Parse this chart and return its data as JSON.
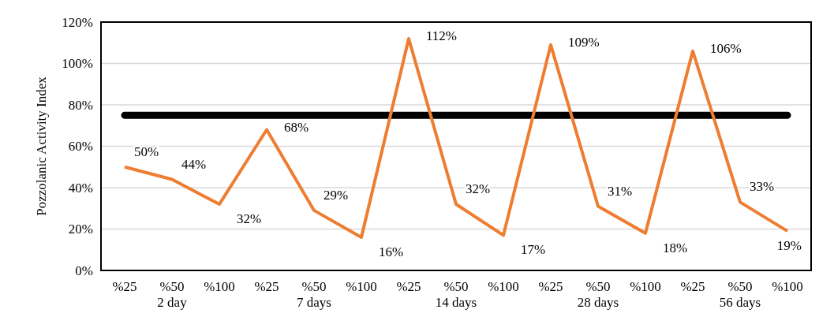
{
  "chart_data": {
    "type": "line",
    "ylabel": "Pozzolanic Activity Index",
    "categories": [
      "%25",
      "%50",
      "%100",
      "%25",
      "%50",
      "%100",
      "%25",
      "%50",
      "%100",
      "%25",
      "%50",
      "%100",
      "%25",
      "%50",
      "%100"
    ],
    "series": [
      {
        "color": "#ed7d31",
        "values": [
          50,
          44,
          32,
          68,
          29,
          16,
          112,
          32,
          17,
          109,
          31,
          18,
          106,
          33,
          19
        ],
        "value_labels": [
          "50%",
          "44%",
          "32%",
          "68%",
          "29%",
          "16%",
          "112%",
          "32%",
          "17%",
          "109%",
          "31%",
          "18%",
          "106%",
          "33%",
          "19%"
        ]
      }
    ],
    "ylim": [
      0,
      120
    ],
    "yticks": [
      {
        "value": 0,
        "label": "0%"
      },
      {
        "value": 20,
        "label": "20%"
      },
      {
        "value": 40,
        "label": "40%"
      },
      {
        "value": 60,
        "label": "60%"
      },
      {
        "value": 80,
        "label": "80%"
      },
      {
        "value": 100,
        "label": "100%"
      },
      {
        "value": 120,
        "label": "120%"
      }
    ],
    "ref_lines": [
      {
        "axis": "y",
        "value": 75,
        "color": "#000000"
      }
    ],
    "annotations": [
      "2 day",
      "7 days",
      "14 days",
      "28 days",
      "56 days"
    ],
    "grid": "y",
    "marker": "none",
    "line_style": "solid"
  }
}
